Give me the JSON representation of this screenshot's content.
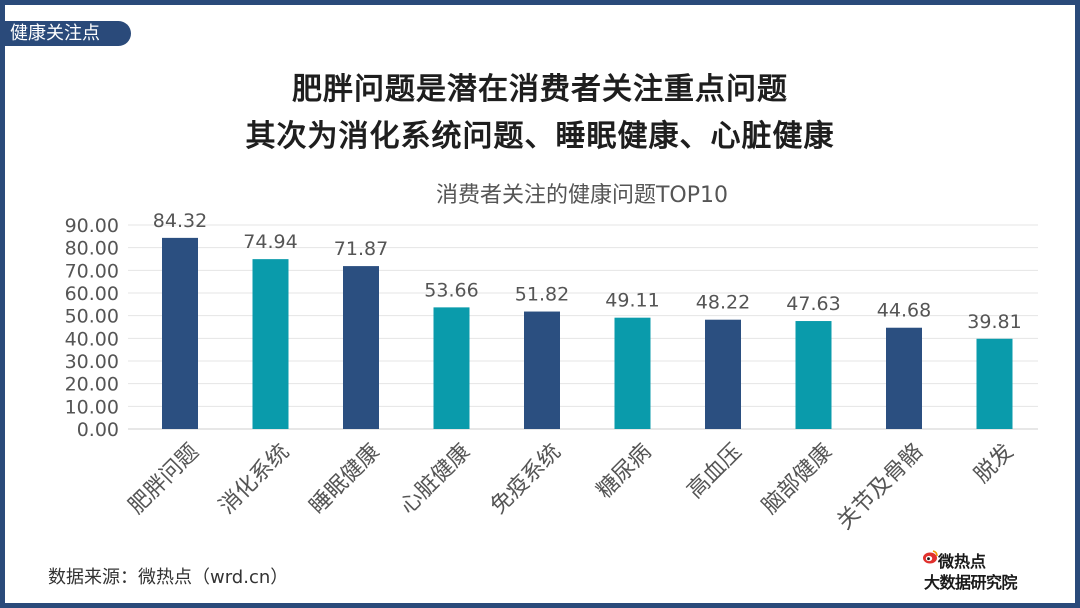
{
  "section_tag": "健康关注点",
  "headline": {
    "line1": "肥胖问题是潜在消费者关注重点问题",
    "line2": "其次为消化系统问题、睡眠健康、心脏健康"
  },
  "source": "数据来源：微热点（wrd.cn）",
  "logo": {
    "top": "微热点",
    "bottom": "大数据研究院",
    "icon": "weibo-eye-icon"
  },
  "colors": {
    "navy": "#2b4f80",
    "teal": "#0a9bab",
    "frame": "#2a4a7a"
  },
  "chart_data": {
    "type": "bar",
    "title": "消费者关注的健康问题TOP10",
    "categories": [
      "肥胖问题",
      "消化系统",
      "睡眠健康",
      "心脏健康",
      "免疫系统",
      "糖尿病",
      "高血压",
      "脑部健康",
      "关节及骨骼",
      "脱发"
    ],
    "values": [
      84.32,
      74.94,
      71.87,
      53.66,
      51.82,
      49.11,
      48.22,
      47.63,
      44.68,
      39.81
    ],
    "value_labels": [
      "84.32",
      "74.94",
      "71.87",
      "53.66",
      "51.82",
      "49.11",
      "48.22",
      "47.63",
      "44.68",
      "39.81"
    ],
    "bar_colors": [
      "#2b4f80",
      "#0a9bab",
      "#2b4f80",
      "#0a9bab",
      "#2b4f80",
      "#0a9bab",
      "#2b4f80",
      "#0a9bab",
      "#2b4f80",
      "#0a9bab"
    ],
    "yticks": [
      "0.00",
      "10.00",
      "20.00",
      "30.00",
      "40.00",
      "50.00",
      "60.00",
      "70.00",
      "80.00",
      "90.00"
    ],
    "ylim": [
      0,
      90
    ],
    "grid": true,
    "xlabel": "",
    "ylabel": ""
  }
}
